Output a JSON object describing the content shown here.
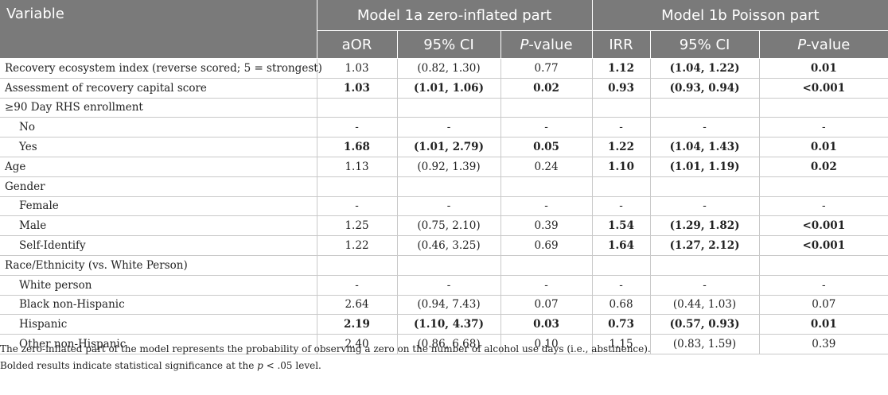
{
  "header": {
    "variable": "Variable",
    "group1": "Model 1a zero-inflated part",
    "group2": "Model 1b Poisson part",
    "aor": "aOR",
    "ci1": "95% CI",
    "p1": "-value",
    "irr": "IRR",
    "ci2": "95% CI",
    "p2": "-value",
    "p_letter": "P"
  },
  "rows": [
    {
      "label": "Recovery ecosystem index (reverse scored; 5 = strongest)",
      "aor": "1.03",
      "ci1": "(0.82, 1.30)",
      "p1": "0.77",
      "irr": "1.12",
      "ci2": "(1.04, 1.22)",
      "p2": "0.01"
    },
    {
      "label": "Assessment of recovery capital score",
      "aor": "1.03",
      "ci1": "(1.01, 1.06)",
      "p1": "0.02",
      "irr": "0.93",
      "ci2": "(0.93, 0.94)",
      "p2": "<0.001"
    },
    {
      "label": "≥90 Day RHS enrollment",
      "aor": "",
      "ci1": "",
      "p1": "",
      "irr": "",
      "ci2": "",
      "p2": ""
    },
    {
      "label": "No",
      "aor": "-",
      "ci1": "-",
      "p1": "-",
      "irr": "-",
      "ci2": "-",
      "p2": "-"
    },
    {
      "label": "Yes",
      "aor": "1.68",
      "ci1": "(1.01, 2.79)",
      "p1": "0.05",
      "irr": "1.22",
      "ci2": "(1.04, 1.43)",
      "p2": "0.01"
    },
    {
      "label": "Age",
      "aor": "1.13",
      "ci1": "(0.92, 1.39)",
      "p1": "0.24",
      "irr": "1.10",
      "ci2": "(1.01, 1.19)",
      "p2": "0.02"
    },
    {
      "label": "Gender",
      "aor": "",
      "ci1": "",
      "p1": "",
      "irr": "",
      "ci2": "",
      "p2": ""
    },
    {
      "label": "Female",
      "aor": "-",
      "ci1": "-",
      "p1": "-",
      "irr": "-",
      "ci2": "-",
      "p2": "-"
    },
    {
      "label": "Male",
      "aor": "1.25",
      "ci1": "(0.75, 2.10)",
      "p1": "0.39",
      "irr": "1.54",
      "ci2": "(1.29, 1.82)",
      "p2": "<0.001"
    },
    {
      "label": "Self-Identify",
      "aor": "1.22",
      "ci1": "(0.46, 3.25)",
      "p1": "0.69",
      "irr": "1.64",
      "ci2": "(1.27, 2.12)",
      "p2": "<0.001"
    },
    {
      "label": "Race/Ethnicity (vs. White Person)",
      "aor": "",
      "ci1": "",
      "p1": "",
      "irr": "",
      "ci2": "",
      "p2": ""
    },
    {
      "label": "White person",
      "aor": "-",
      "ci1": "-",
      "p1": "-",
      "irr": "-",
      "ci2": "-",
      "p2": "-"
    },
    {
      "label": "Black non-Hispanic",
      "aor": "2.64",
      "ci1": "(0.94, 7.43)",
      "p1": "0.07",
      "irr": "0.68",
      "ci2": "(0.44, 1.03)",
      "p2": "0.07"
    },
    {
      "label": "Hispanic",
      "aor": "2.19",
      "ci1": "(1.10, 4.37)",
      "p1": "0.03",
      "irr": "0.73",
      "ci2": "(0.57, 0.93)",
      "p2": "0.01"
    },
    {
      "label": "Other non-Hispanic",
      "aor": "2.40",
      "ci1": "(0.86, 6.68)",
      "p1": "0.10",
      "irr": "1.15",
      "ci2": "(0.83, 1.59)",
      "p2": "0.39"
    }
  ],
  "notes": {
    "line1": "The zero-inflated part of the model represents the probability of observing a zero on the number of alcohol use days (i.e., abstinence).",
    "line2_pre": "Bolded results indicate statistical significance at the ",
    "line2_p": "p",
    "line2_post": " < .05 level."
  }
}
